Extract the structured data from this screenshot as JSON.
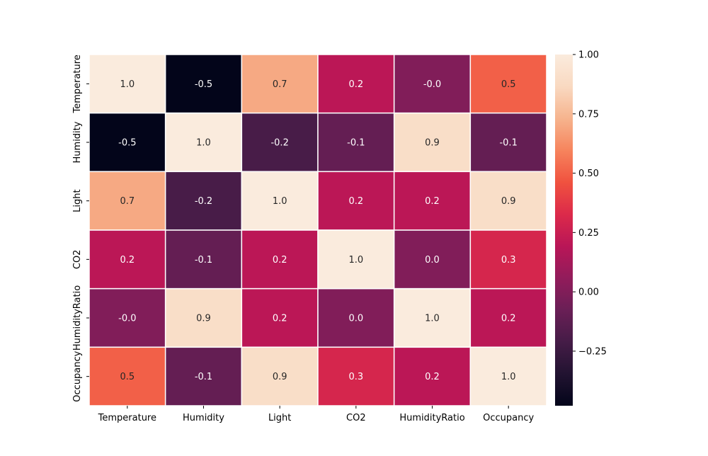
{
  "chart_data": {
    "type": "heatmap",
    "title": "",
    "xlabel": "",
    "ylabel": "",
    "x_categories": [
      "Temperature",
      "Humidity",
      "Light",
      "CO2",
      "HumidityRatio",
      "Occupancy"
    ],
    "y_categories": [
      "Temperature",
      "Humidity",
      "Light",
      "CO2",
      "HumidityRatio",
      "Occupancy"
    ],
    "values": [
      [
        1.0,
        -0.5,
        0.7,
        0.2,
        -0.0,
        0.5
      ],
      [
        -0.5,
        1.0,
        -0.2,
        -0.1,
        0.9,
        -0.1
      ],
      [
        0.7,
        -0.2,
        1.0,
        0.2,
        0.2,
        0.9
      ],
      [
        0.2,
        -0.1,
        0.2,
        1.0,
        0.0,
        0.3
      ],
      [
        -0.0,
        0.9,
        0.2,
        0.0,
        1.0,
        0.2
      ],
      [
        0.5,
        -0.1,
        0.9,
        0.3,
        0.2,
        1.0
      ]
    ],
    "cell_labels": [
      [
        "1.0",
        "-0.5",
        "0.7",
        "0.2",
        "-0.0",
        "0.5"
      ],
      [
        "-0.5",
        "1.0",
        "-0.2",
        "-0.1",
        "0.9",
        "-0.1"
      ],
      [
        "0.7",
        "-0.2",
        "1.0",
        "0.2",
        "0.2",
        "0.9"
      ],
      [
        "0.2",
        "-0.1",
        "0.2",
        "1.0",
        "0.0",
        "0.3"
      ],
      [
        "-0.0",
        "0.9",
        "0.2",
        "0.0",
        "1.0",
        "0.2"
      ],
      [
        "0.5",
        "-0.1",
        "0.9",
        "0.3",
        "0.2",
        "1.0"
      ]
    ],
    "color_scale": {
      "name": "rocket",
      "vmin": -0.48,
      "vmax": 1.0,
      "ticks": [
        1.0,
        0.75,
        0.5,
        0.25,
        0.0,
        -0.25
      ],
      "tick_labels": [
        "1.00",
        "0.75",
        "0.50",
        "0.25",
        "0.00",
        "−0.25"
      ],
      "stops": [
        "#03051a",
        "#221331",
        "#451c47",
        "#6a1f56",
        "#921c5b",
        "#b91657",
        "#dc2a4a",
        "#f0523f",
        "#f6845d",
        "#f6b48e",
        "#f9d9c1",
        "#faebdd"
      ]
    },
    "legend": "right",
    "grid": false,
    "cell_border_color": "#ffffff"
  }
}
